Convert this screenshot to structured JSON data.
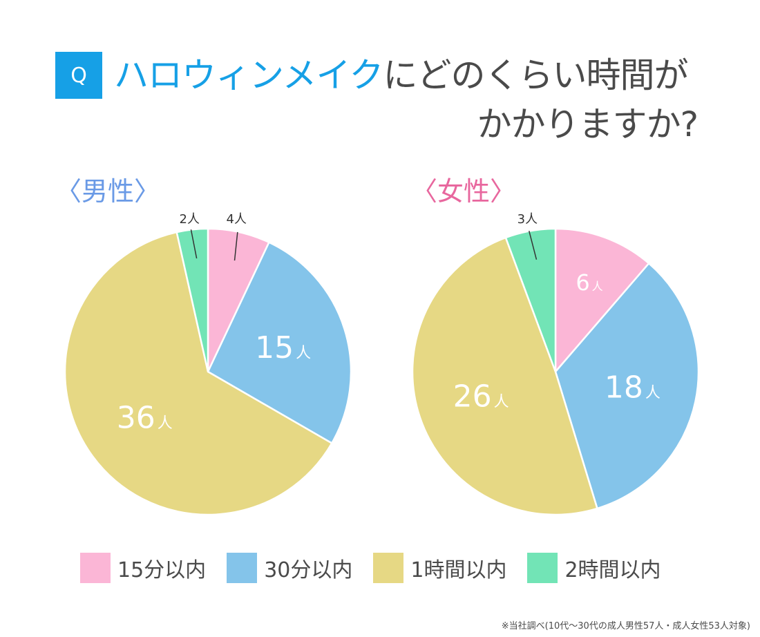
{
  "header": {
    "q_badge": "Q",
    "title_highlight": "ハロウィンメイク",
    "title_rest": "にどのくらい時間が",
    "title_line2": "かかりますか?"
  },
  "footnote": "※当社調べ(10代〜30代の成人男性57人・成人女性53人対象)",
  "chart_data": [
    {
      "type": "pie",
      "title": "〈男性〉",
      "title_color": "#6a9ae6",
      "categories": [
        "15分以内",
        "30分以内",
        "1時間以内",
        "2時間以内"
      ],
      "values": [
        4,
        15,
        36,
        2
      ],
      "labels": [
        "4",
        "15",
        "36",
        "2"
      ],
      "unit": "人",
      "colors": [
        "#fbb6d6",
        "#84c4ea",
        "#e6d884",
        "#72e4b6"
      ],
      "start": "top",
      "direction": "clockwise"
    },
    {
      "type": "pie",
      "title": "〈女性〉",
      "title_color": "#e8679e",
      "categories": [
        "15分以内",
        "30分以内",
        "1時間以内",
        "2時間以内"
      ],
      "values": [
        6,
        18,
        26,
        3
      ],
      "labels": [
        "6",
        "18",
        "26",
        "3"
      ],
      "unit": "人",
      "colors": [
        "#fbb6d6",
        "#84c4ea",
        "#e6d884",
        "#72e4b6"
      ],
      "start": "top",
      "direction": "clockwise"
    }
  ],
  "legend": [
    {
      "label": "15分以内",
      "color": "#fbb6d6"
    },
    {
      "label": "30分以内",
      "color": "#84c4ea"
    },
    {
      "label": "1時間以内",
      "color": "#e6d884"
    },
    {
      "label": "2時間以内",
      "color": "#72e4b6"
    }
  ]
}
